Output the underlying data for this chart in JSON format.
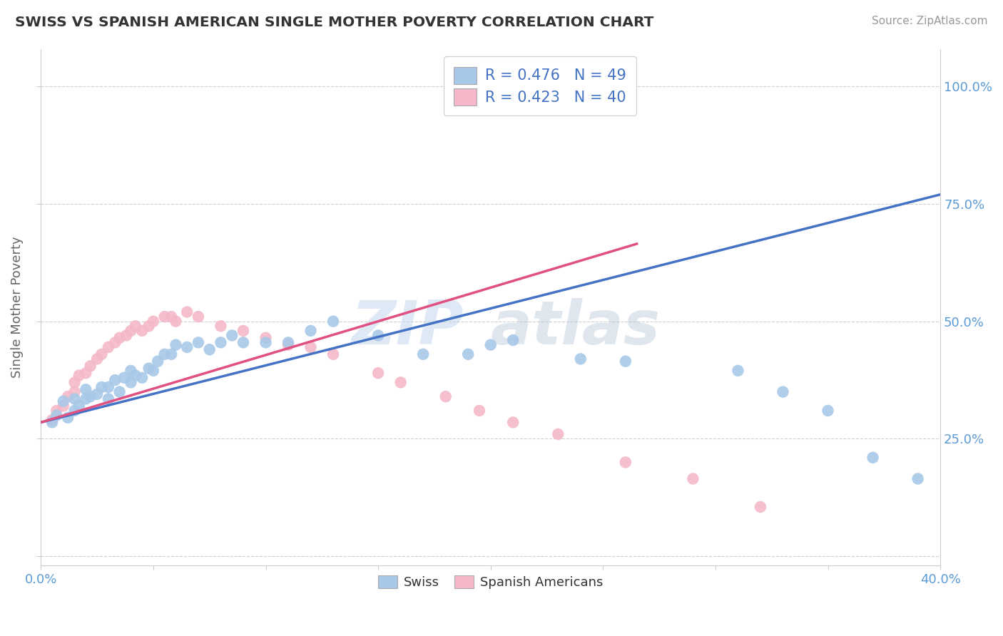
{
  "title": "SWISS VS SPANISH AMERICAN SINGLE MOTHER POVERTY CORRELATION CHART",
  "source": "Source: ZipAtlas.com",
  "ylabel": "Single Mother Poverty",
  "xlim": [
    0.0,
    0.4
  ],
  "ylim": [
    -0.02,
    1.08
  ],
  "x_ticks": [
    0.0,
    0.05,
    0.1,
    0.15,
    0.2,
    0.25,
    0.3,
    0.35,
    0.4
  ],
  "x_tick_labels": [
    "0.0%",
    "",
    "",
    "",
    "",
    "",
    "",
    "",
    "40.0%"
  ],
  "y_ticks": [
    0.0,
    0.25,
    0.5,
    0.75,
    1.0
  ],
  "y_tick_labels": [
    "",
    "25.0%",
    "50.0%",
    "75.0%",
    "100.0%"
  ],
  "swiss_color": "#a8c8e8",
  "spanish_color": "#f4b8c8",
  "swiss_line_color": "#4472c4",
  "spanish_line_color": "#e05080",
  "legend_R_swiss": "R = 0.476   N = 49",
  "legend_R_spanish": "R = 0.423   N = 40",
  "watermark_zip": "ZIP",
  "watermark_atlas": "atlas",
  "background_color": "#ffffff",
  "grid_color": "#d0d0d0",
  "swiss_x": [
    0.005,
    0.007,
    0.01,
    0.012,
    0.015,
    0.015,
    0.017,
    0.02,
    0.02,
    0.022,
    0.025,
    0.027,
    0.03,
    0.03,
    0.033,
    0.035,
    0.037,
    0.04,
    0.04,
    0.042,
    0.045,
    0.048,
    0.05,
    0.052,
    0.055,
    0.058,
    0.06,
    0.065,
    0.07,
    0.075,
    0.08,
    0.085,
    0.09,
    0.1,
    0.11,
    0.12,
    0.13,
    0.15,
    0.17,
    0.19,
    0.2,
    0.21,
    0.24,
    0.26,
    0.31,
    0.33,
    0.35,
    0.37,
    0.39
  ],
  "swiss_y": [
    0.285,
    0.3,
    0.33,
    0.295,
    0.31,
    0.335,
    0.32,
    0.335,
    0.355,
    0.34,
    0.345,
    0.36,
    0.335,
    0.36,
    0.375,
    0.35,
    0.38,
    0.37,
    0.395,
    0.385,
    0.38,
    0.4,
    0.395,
    0.415,
    0.43,
    0.43,
    0.45,
    0.445,
    0.455,
    0.44,
    0.455,
    0.47,
    0.455,
    0.455,
    0.455,
    0.48,
    0.5,
    0.47,
    0.43,
    0.43,
    0.45,
    0.46,
    0.42,
    0.415,
    0.395,
    0.35,
    0.31,
    0.21,
    0.165
  ],
  "spanish_x": [
    0.005,
    0.007,
    0.01,
    0.012,
    0.015,
    0.015,
    0.017,
    0.02,
    0.022,
    0.025,
    0.027,
    0.03,
    0.033,
    0.035,
    0.038,
    0.04,
    0.042,
    0.045,
    0.048,
    0.05,
    0.055,
    0.058,
    0.06,
    0.065,
    0.07,
    0.08,
    0.09,
    0.1,
    0.11,
    0.12,
    0.13,
    0.15,
    0.16,
    0.18,
    0.195,
    0.21,
    0.23,
    0.26,
    0.29,
    0.32
  ],
  "spanish_y": [
    0.29,
    0.31,
    0.32,
    0.34,
    0.35,
    0.37,
    0.385,
    0.39,
    0.405,
    0.42,
    0.43,
    0.445,
    0.455,
    0.465,
    0.47,
    0.48,
    0.49,
    0.48,
    0.49,
    0.5,
    0.51,
    0.51,
    0.5,
    0.52,
    0.51,
    0.49,
    0.48,
    0.465,
    0.45,
    0.445,
    0.43,
    0.39,
    0.37,
    0.34,
    0.31,
    0.285,
    0.26,
    0.2,
    0.165,
    0.105
  ],
  "swiss_line_x": [
    0.0,
    0.4
  ],
  "swiss_line_y": [
    0.285,
    0.77
  ],
  "spanish_line_x": [
    0.0,
    0.265
  ],
  "spanish_line_y": [
    0.285,
    0.665
  ]
}
